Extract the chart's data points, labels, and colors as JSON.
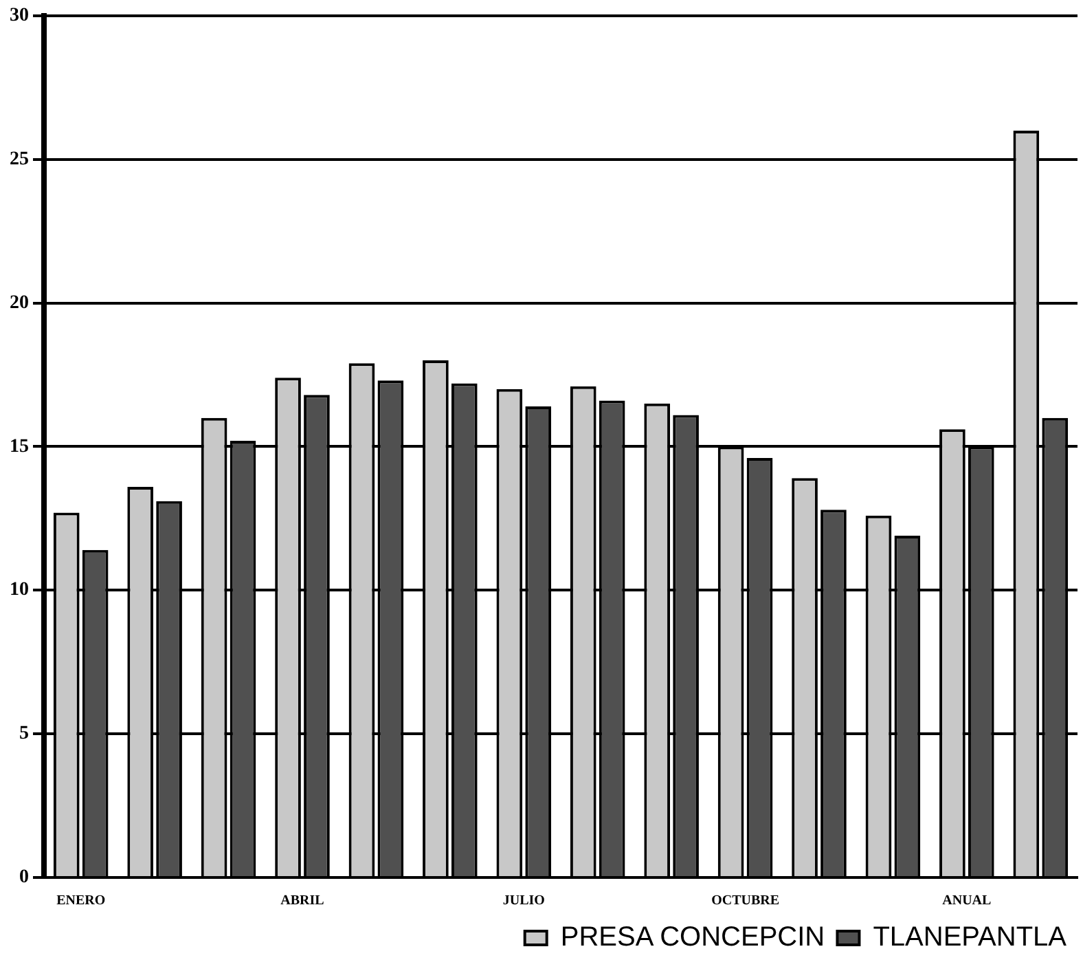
{
  "chart_data": {
    "type": "bar",
    "categories": [
      "ENERO",
      null,
      null,
      "ABRIL",
      null,
      null,
      "JULIO",
      null,
      null,
      "OCTUBRE",
      null,
      null,
      "ANUAL",
      null
    ],
    "series": [
      {
        "name": "PRESA CONCEPCIN",
        "color": "#c8c8c8",
        "values": [
          12.7,
          13.6,
          16.0,
          17.4,
          17.9,
          18.0,
          17.0,
          17.1,
          16.5,
          15.0,
          13.9,
          12.6,
          15.6,
          26.0
        ]
      },
      {
        "name": "TLANEPANTLA",
        "color": "#505050",
        "values": [
          11.4,
          13.1,
          15.2,
          16.8,
          17.3,
          17.2,
          16.4,
          16.6,
          16.1,
          14.6,
          12.8,
          11.9,
          15.0,
          16.0
        ]
      }
    ],
    "ylim": [
      0,
      30
    ],
    "yticks": [
      0,
      5,
      10,
      15,
      20,
      25,
      30
    ],
    "grid": "y",
    "legend": "bottom right"
  }
}
